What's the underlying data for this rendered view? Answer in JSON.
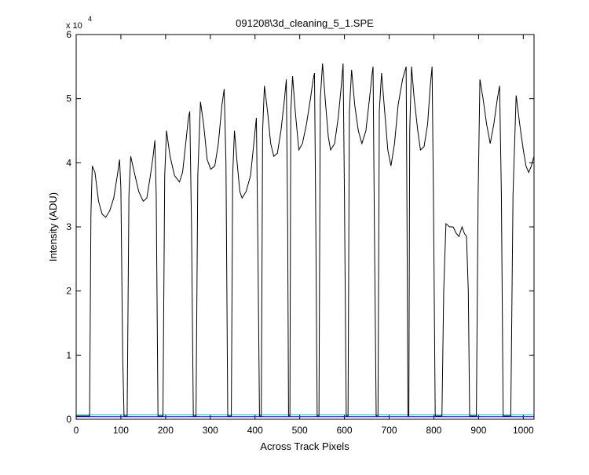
{
  "chart_data": {
    "type": "line",
    "title": "091208\\3d_cleaning_5_1.SPE",
    "x_label": "Across Track Pixels",
    "y_label": "Intensity (ADU)",
    "y_multiplier": {
      "base": "x 10",
      "exponent": "4"
    },
    "xlim": [
      0,
      1024
    ],
    "ylim": [
      0,
      6
    ],
    "xticks": [
      0,
      100,
      200,
      300,
      400,
      500,
      600,
      700,
      800,
      900,
      1000
    ],
    "yticks": [
      0,
      1,
      2,
      3,
      4,
      5,
      6
    ],
    "grid": false,
    "series": [
      {
        "color": "#0000ff",
        "x": [
          0,
          1024
        ],
        "values": [
          0.04,
          0.04
        ]
      },
      {
        "color": "#00bfbf",
        "x": [
          0,
          1024
        ],
        "values": [
          0.07,
          0.07
        ]
      },
      {
        "color": "#000000",
        "x": [
          0,
          30,
          33,
          36,
          42,
          50,
          58,
          66,
          75,
          84,
          92,
          97,
          100,
          104,
          107,
          114,
          118,
          122,
          130,
          140,
          150,
          158,
          166,
          172,
          176,
          179,
          183,
          194,
          198,
          202,
          210,
          220,
          231,
          238,
          245,
          251,
          254,
          258,
          262,
          268,
          272,
          278,
          285,
          293,
          301,
          310,
          318,
          326,
          331,
          335,
          339,
          347,
          350,
          354,
          360,
          366,
          371,
          380,
          390,
          398,
          403,
          406,
          410,
          414,
          417,
          421,
          428,
          435,
          442,
          450,
          458,
          466,
          470,
          473,
          475,
          478,
          480,
          484,
          490,
          498,
          506,
          515,
          524,
          530,
          533,
          536,
          539,
          543,
          546,
          551,
          558,
          564,
          569,
          578,
          586,
          593,
          597,
          600,
          604,
          608,
          611,
          616,
          623,
          631,
          639,
          648,
          656,
          662,
          664,
          667,
          671,
          675,
          678,
          683,
          690,
          697,
          704,
          712,
          720,
          730,
          738,
          740,
          742,
          744,
          746,
          750,
          756,
          764,
          770,
          778,
          786,
          792,
          796,
          799,
          803,
          818,
          822,
          827,
          835,
          843,
          850,
          856,
          863,
          868,
          873,
          877,
          880,
          895,
          899,
          903,
          910,
          918,
          926,
          934,
          942,
          947,
          951,
          955,
          972,
          977,
          984,
          992,
          1000,
          1006,
          1012,
          1018,
          1024
        ],
        "values": [
          0.05,
          0.05,
          3.2,
          3.95,
          3.85,
          3.4,
          3.2,
          3.15,
          3.25,
          3.45,
          3.8,
          4.05,
          3.6,
          1.0,
          0.05,
          0.05,
          3.5,
          4.1,
          3.85,
          3.55,
          3.4,
          3.45,
          3.8,
          4.1,
          4.35,
          3.5,
          0.05,
          0.05,
          3.8,
          4.5,
          4.1,
          3.8,
          3.7,
          3.85,
          4.3,
          4.7,
          4.8,
          3.0,
          0.05,
          0.05,
          3.8,
          4.95,
          4.6,
          4.05,
          3.9,
          3.95,
          4.3,
          4.9,
          5.15,
          4.0,
          0.05,
          0.05,
          3.8,
          4.5,
          4.0,
          3.55,
          3.45,
          3.55,
          3.8,
          4.35,
          4.7,
          3.0,
          0.05,
          0.05,
          4.5,
          5.2,
          4.8,
          4.3,
          4.1,
          4.15,
          4.5,
          5.0,
          5.3,
          3.0,
          0.05,
          0.05,
          4.8,
          5.35,
          4.8,
          4.2,
          4.3,
          4.6,
          5.0,
          5.3,
          5.4,
          3.0,
          0.05,
          0.05,
          5.0,
          5.55,
          4.9,
          4.4,
          4.2,
          4.3,
          4.7,
          5.2,
          5.55,
          3.5,
          0.05,
          0.05,
          4.8,
          5.45,
          4.9,
          4.5,
          4.3,
          4.5,
          5.0,
          5.4,
          5.5,
          3.0,
          0.05,
          0.05,
          4.8,
          5.4,
          4.8,
          4.2,
          3.95,
          4.3,
          4.9,
          5.3,
          5.5,
          3.0,
          0.05,
          0.05,
          4.5,
          5.5,
          5.0,
          4.5,
          4.2,
          4.25,
          4.6,
          5.2,
          5.5,
          3.5,
          0.05,
          0.05,
          2.0,
          3.05,
          3.0,
          3.0,
          2.9,
          2.85,
          3.0,
          2.9,
          2.85,
          2.0,
          0.05,
          0.05,
          3.5,
          5.3,
          5.0,
          4.6,
          4.3,
          4.6,
          5.0,
          5.2,
          3.5,
          0.05,
          0.05,
          3.5,
          5.05,
          4.6,
          4.2,
          3.95,
          3.85,
          3.95,
          4.1
        ]
      }
    ]
  }
}
